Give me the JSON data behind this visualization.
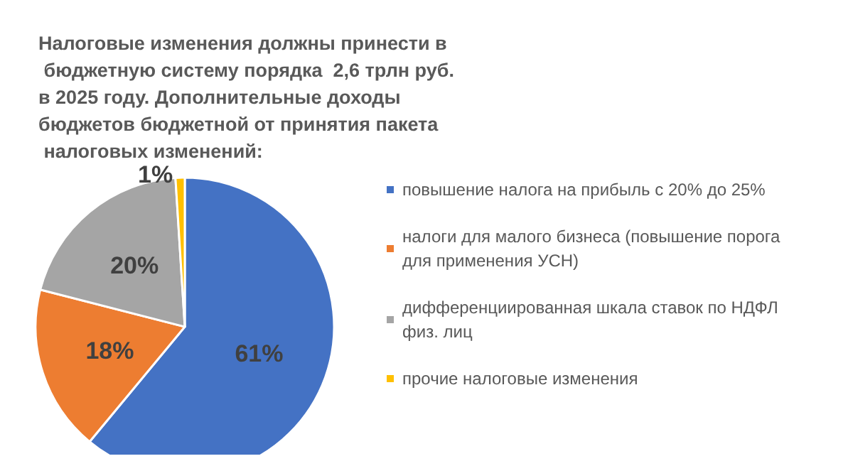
{
  "chart_data": {
    "type": "pie",
    "title": "Налоговые изменения должны принести в бюджетную систему порядка  2,6 трлн руб. в 2025 году. Дополнительные доходы бюджетов бюджетной от принятия пакета налоговых изменений:",
    "categories": [
      "повышение налога на прибыль с 20% до 25%",
      "налоги для малого бизнеса (повышение порога для применения УСН)",
      "дифференциированная шкала ставок по НДФЛ физ. лиц",
      "прочие налоговые изменения"
    ],
    "values": [
      61,
      18,
      20,
      1
    ],
    "colors": [
      "#4472c4",
      "#ed7d31",
      "#a5a5a5",
      "#ffc000"
    ],
    "value_labels": [
      "61%",
      "18%",
      "20%",
      "1%"
    ],
    "legend": "right"
  }
}
